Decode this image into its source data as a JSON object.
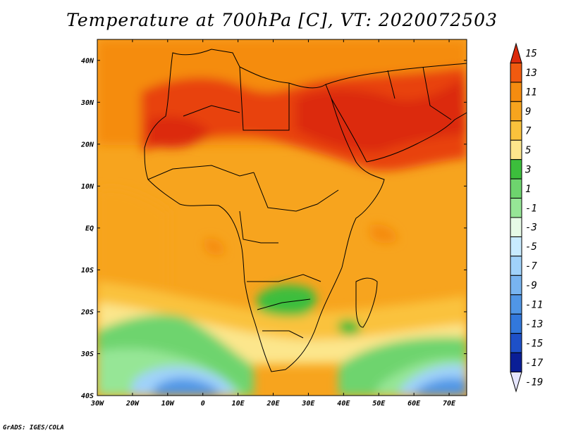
{
  "title": "Temperature at 700hPa [C], VT: 2020072503",
  "credit": "GrADS: IGES/COLA",
  "map": {
    "lat_labels": [
      "40N",
      "30N",
      "20N",
      "10N",
      "EQ",
      "10S",
      "20S",
      "30S",
      "40S"
    ],
    "lon_labels": [
      "30W",
      "20W",
      "10W",
      "0",
      "10E",
      "20E",
      "30E",
      "40E",
      "50E",
      "60E",
      "70E"
    ],
    "lat_range": [
      -40,
      45
    ],
    "lon_range": [
      -30,
      75
    ]
  },
  "colorbar": {
    "labels": [
      "15",
      "13",
      "11",
      "9",
      "7",
      "5",
      "3",
      "1",
      "-1",
      "-3",
      "-5",
      "-7",
      "-9",
      "-11",
      "-13",
      "-15",
      "-17",
      "-19"
    ],
    "colors": [
      "#dc2a0c",
      "#f05a10",
      "#f58c10",
      "#f7a41e",
      "#fac23c",
      "#fce68c",
      "#3cbe3c",
      "#6ed46e",
      "#96e696",
      "#e6fae6",
      "#c8ebff",
      "#a0d2fa",
      "#78b4f0",
      "#5096e6",
      "#3278dc",
      "#1e50c8",
      "#0a1e96",
      "#e6e6ff"
    ]
  }
}
